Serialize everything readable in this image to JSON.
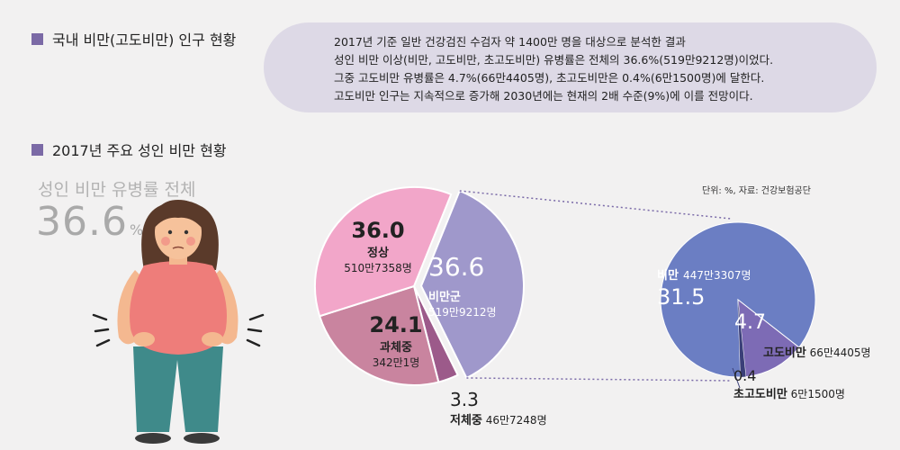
{
  "section1": {
    "title": "국내 비만(고도비만) 인구 현황"
  },
  "summary_lines": [
    "2017년 기준 일반 건강검진 수검자 약 1400만 명을 대상으로 분석한 결과",
    "성인 비만 이상(비만, 고도비만, 초고도비만) 유병률은 전체의 36.6%(519만9212명)이었다.",
    "그중 고도비만 유병률은 4.7%(66만4405명), 초고도비만은 0.4%(6만1500명)에 달한다.",
    "고도비만 인구는 지속적으로 증가해 2030년에는 현재의 2배 수준(9%)에 이를 전망이다."
  ],
  "section2": {
    "title": "2017년 주요 성인 비만 현황"
  },
  "hero": {
    "label": "성인 비만 유병률 전체",
    "value": "36.6",
    "unit": "%"
  },
  "source": "단위: %, 자료: 건강보험공단",
  "colors": {
    "normal": "#f2a6c9",
    "overweight": "#c9849f",
    "underweight": "#9c5a8a",
    "obese_group": "#9f98cb",
    "obese": "#6b7ec3",
    "high": "#7d6bb5",
    "super_high": "#3a3f78",
    "accent": "#7b6aa6"
  },
  "chart_data": [
    {
      "type": "pie",
      "unit": "%",
      "slices": [
        {
          "name": "비만군",
          "value": 36.6,
          "value_label": "36.6",
          "count": "519만9212명"
        },
        {
          "name": "저체중",
          "value": 3.3,
          "value_label": "3.3",
          "count": "46만7248명"
        },
        {
          "name": "과체중",
          "value": 24.1,
          "value_label": "24.1",
          "count": "342만1명"
        },
        {
          "name": "정상",
          "value": 36.0,
          "value_label": "36.0",
          "count": "510만7358명"
        }
      ]
    },
    {
      "type": "pie",
      "unit": "%",
      "slices": [
        {
          "name": "비만",
          "value": 31.5,
          "value_label": "31.5",
          "count": "447만3307명"
        },
        {
          "name": "고도비만",
          "value": 4.7,
          "value_label": "4.7",
          "count": "66만4405명"
        },
        {
          "name": "초고도비만",
          "value": 0.4,
          "value_label": "0.4",
          "count": "6만1500명"
        }
      ]
    }
  ]
}
